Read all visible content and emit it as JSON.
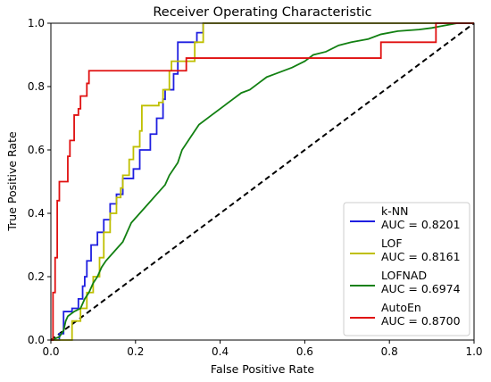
{
  "chart_data": {
    "type": "line",
    "title": "Receiver Operating Characteristic",
    "xlabel": "False Positive Rate",
    "ylabel": "True Positive Rate",
    "xlim": [
      0,
      1
    ],
    "ylim": [
      0,
      1
    ],
    "xticks": [
      "0.0",
      "0.2",
      "0.4",
      "0.6",
      "0.8",
      "1.0"
    ],
    "yticks": [
      "0.0",
      "0.2",
      "0.4",
      "0.6",
      "0.8",
      "1.0"
    ],
    "grid": false,
    "legend_position": "lower-right",
    "diagonal": {
      "style": "dashed",
      "color": "#000000",
      "points": [
        [
          0,
          0
        ],
        [
          1,
          1
        ]
      ]
    },
    "series": [
      {
        "name": "k-NN",
        "auc_label": "AUC = 0.8201",
        "color": "#1f1fe0",
        "points": [
          [
            0,
            0
          ],
          [
            0.02,
            0
          ],
          [
            0.02,
            0.02
          ],
          [
            0.03,
            0.02
          ],
          [
            0.03,
            0.05
          ],
          [
            0.03,
            0.09
          ],
          [
            0.05,
            0.09
          ],
          [
            0.05,
            0.1
          ],
          [
            0.065,
            0.1
          ],
          [
            0.065,
            0.13
          ],
          [
            0.075,
            0.13
          ],
          [
            0.075,
            0.17
          ],
          [
            0.08,
            0.17
          ],
          [
            0.08,
            0.2
          ],
          [
            0.085,
            0.2
          ],
          [
            0.085,
            0.25
          ],
          [
            0.095,
            0.25
          ],
          [
            0.095,
            0.3
          ],
          [
            0.11,
            0.3
          ],
          [
            0.11,
            0.34
          ],
          [
            0.125,
            0.34
          ],
          [
            0.125,
            0.38
          ],
          [
            0.14,
            0.38
          ],
          [
            0.14,
            0.43
          ],
          [
            0.155,
            0.43
          ],
          [
            0.155,
            0.46
          ],
          [
            0.17,
            0.46
          ],
          [
            0.17,
            0.51
          ],
          [
            0.195,
            0.51
          ],
          [
            0.195,
            0.54
          ],
          [
            0.21,
            0.54
          ],
          [
            0.21,
            0.6
          ],
          [
            0.235,
            0.6
          ],
          [
            0.235,
            0.65
          ],
          [
            0.25,
            0.65
          ],
          [
            0.25,
            0.7
          ],
          [
            0.265,
            0.7
          ],
          [
            0.265,
            0.76
          ],
          [
            0.27,
            0.76
          ],
          [
            0.27,
            0.79
          ],
          [
            0.29,
            0.79
          ],
          [
            0.29,
            0.84
          ],
          [
            0.3,
            0.84
          ],
          [
            0.3,
            0.94
          ],
          [
            0.345,
            0.94
          ],
          [
            0.345,
            0.97
          ],
          [
            0.36,
            0.97
          ],
          [
            0.36,
            1.0
          ],
          [
            1.0,
            1.0
          ]
        ]
      },
      {
        "name": "LOF",
        "auc_label": "AUC = 0.8161",
        "color": "#bfbf00",
        "points": [
          [
            0,
            0
          ],
          [
            0.05,
            0
          ],
          [
            0.05,
            0.06
          ],
          [
            0.07,
            0.06
          ],
          [
            0.07,
            0.1
          ],
          [
            0.085,
            0.1
          ],
          [
            0.085,
            0.15
          ],
          [
            0.1,
            0.15
          ],
          [
            0.1,
            0.2
          ],
          [
            0.115,
            0.2
          ],
          [
            0.115,
            0.26
          ],
          [
            0.125,
            0.26
          ],
          [
            0.125,
            0.34
          ],
          [
            0.14,
            0.34
          ],
          [
            0.14,
            0.4
          ],
          [
            0.155,
            0.4
          ],
          [
            0.155,
            0.45
          ],
          [
            0.165,
            0.45
          ],
          [
            0.165,
            0.48
          ],
          [
            0.17,
            0.48
          ],
          [
            0.17,
            0.52
          ],
          [
            0.185,
            0.52
          ],
          [
            0.185,
            0.57
          ],
          [
            0.195,
            0.57
          ],
          [
            0.195,
            0.61
          ],
          [
            0.21,
            0.61
          ],
          [
            0.21,
            0.66
          ],
          [
            0.215,
            0.66
          ],
          [
            0.215,
            0.74
          ],
          [
            0.255,
            0.74
          ],
          [
            0.255,
            0.75
          ],
          [
            0.265,
            0.75
          ],
          [
            0.265,
            0.79
          ],
          [
            0.28,
            0.79
          ],
          [
            0.28,
            0.85
          ],
          [
            0.285,
            0.85
          ],
          [
            0.285,
            0.88
          ],
          [
            0.34,
            0.88
          ],
          [
            0.34,
            0.94
          ],
          [
            0.36,
            0.94
          ],
          [
            0.36,
            1.0
          ],
          [
            1.0,
            1.0
          ]
        ]
      },
      {
        "name": "LOFNAD",
        "auc_label": "AUC = 0.6974",
        "color": "#128012",
        "points": [
          [
            0,
            0
          ],
          [
            0.02,
            0.01
          ],
          [
            0.03,
            0.03
          ],
          [
            0.035,
            0.06
          ],
          [
            0.04,
            0.075
          ],
          [
            0.055,
            0.09
          ],
          [
            0.07,
            0.1
          ],
          [
            0.08,
            0.13
          ],
          [
            0.09,
            0.15
          ],
          [
            0.1,
            0.18
          ],
          [
            0.11,
            0.2
          ],
          [
            0.12,
            0.23
          ],
          [
            0.13,
            0.25
          ],
          [
            0.15,
            0.28
          ],
          [
            0.17,
            0.31
          ],
          [
            0.18,
            0.34
          ],
          [
            0.19,
            0.37
          ],
          [
            0.21,
            0.4
          ],
          [
            0.23,
            0.43
          ],
          [
            0.25,
            0.46
          ],
          [
            0.27,
            0.49
          ],
          [
            0.28,
            0.52
          ],
          [
            0.3,
            0.56
          ],
          [
            0.31,
            0.6
          ],
          [
            0.33,
            0.64
          ],
          [
            0.35,
            0.68
          ],
          [
            0.38,
            0.71
          ],
          [
            0.41,
            0.74
          ],
          [
            0.43,
            0.76
          ],
          [
            0.45,
            0.78
          ],
          [
            0.47,
            0.79
          ],
          [
            0.49,
            0.81
          ],
          [
            0.51,
            0.83
          ],
          [
            0.53,
            0.84
          ],
          [
            0.57,
            0.86
          ],
          [
            0.6,
            0.88
          ],
          [
            0.62,
            0.9
          ],
          [
            0.65,
            0.91
          ],
          [
            0.68,
            0.93
          ],
          [
            0.71,
            0.94
          ],
          [
            0.75,
            0.95
          ],
          [
            0.78,
            0.965
          ],
          [
            0.82,
            0.975
          ],
          [
            0.87,
            0.98
          ],
          [
            0.9,
            0.985
          ],
          [
            0.92,
            0.99
          ],
          [
            0.94,
            0.995
          ],
          [
            0.96,
            1.0
          ],
          [
            1.0,
            1.0
          ]
        ]
      },
      {
        "name": "AutoEn",
        "auc_label": "AUC = 0.8700",
        "color": "#e01010",
        "points": [
          [
            0,
            0
          ],
          [
            0.005,
            0
          ],
          [
            0.005,
            0.15
          ],
          [
            0.01,
            0.15
          ],
          [
            0.01,
            0.26
          ],
          [
            0.015,
            0.26
          ],
          [
            0.015,
            0.44
          ],
          [
            0.02,
            0.44
          ],
          [
            0.02,
            0.5
          ],
          [
            0.04,
            0.5
          ],
          [
            0.04,
            0.58
          ],
          [
            0.045,
            0.58
          ],
          [
            0.045,
            0.63
          ],
          [
            0.055,
            0.63
          ],
          [
            0.055,
            0.71
          ],
          [
            0.065,
            0.71
          ],
          [
            0.065,
            0.73
          ],
          [
            0.07,
            0.73
          ],
          [
            0.07,
            0.77
          ],
          [
            0.085,
            0.77
          ],
          [
            0.085,
            0.81
          ],
          [
            0.09,
            0.81
          ],
          [
            0.09,
            0.85
          ],
          [
            0.32,
            0.85
          ],
          [
            0.32,
            0.89
          ],
          [
            0.78,
            0.89
          ],
          [
            0.78,
            0.94
          ],
          [
            0.91,
            0.94
          ],
          [
            0.91,
            1.0
          ],
          [
            1.0,
            1.0
          ]
        ]
      }
    ]
  }
}
